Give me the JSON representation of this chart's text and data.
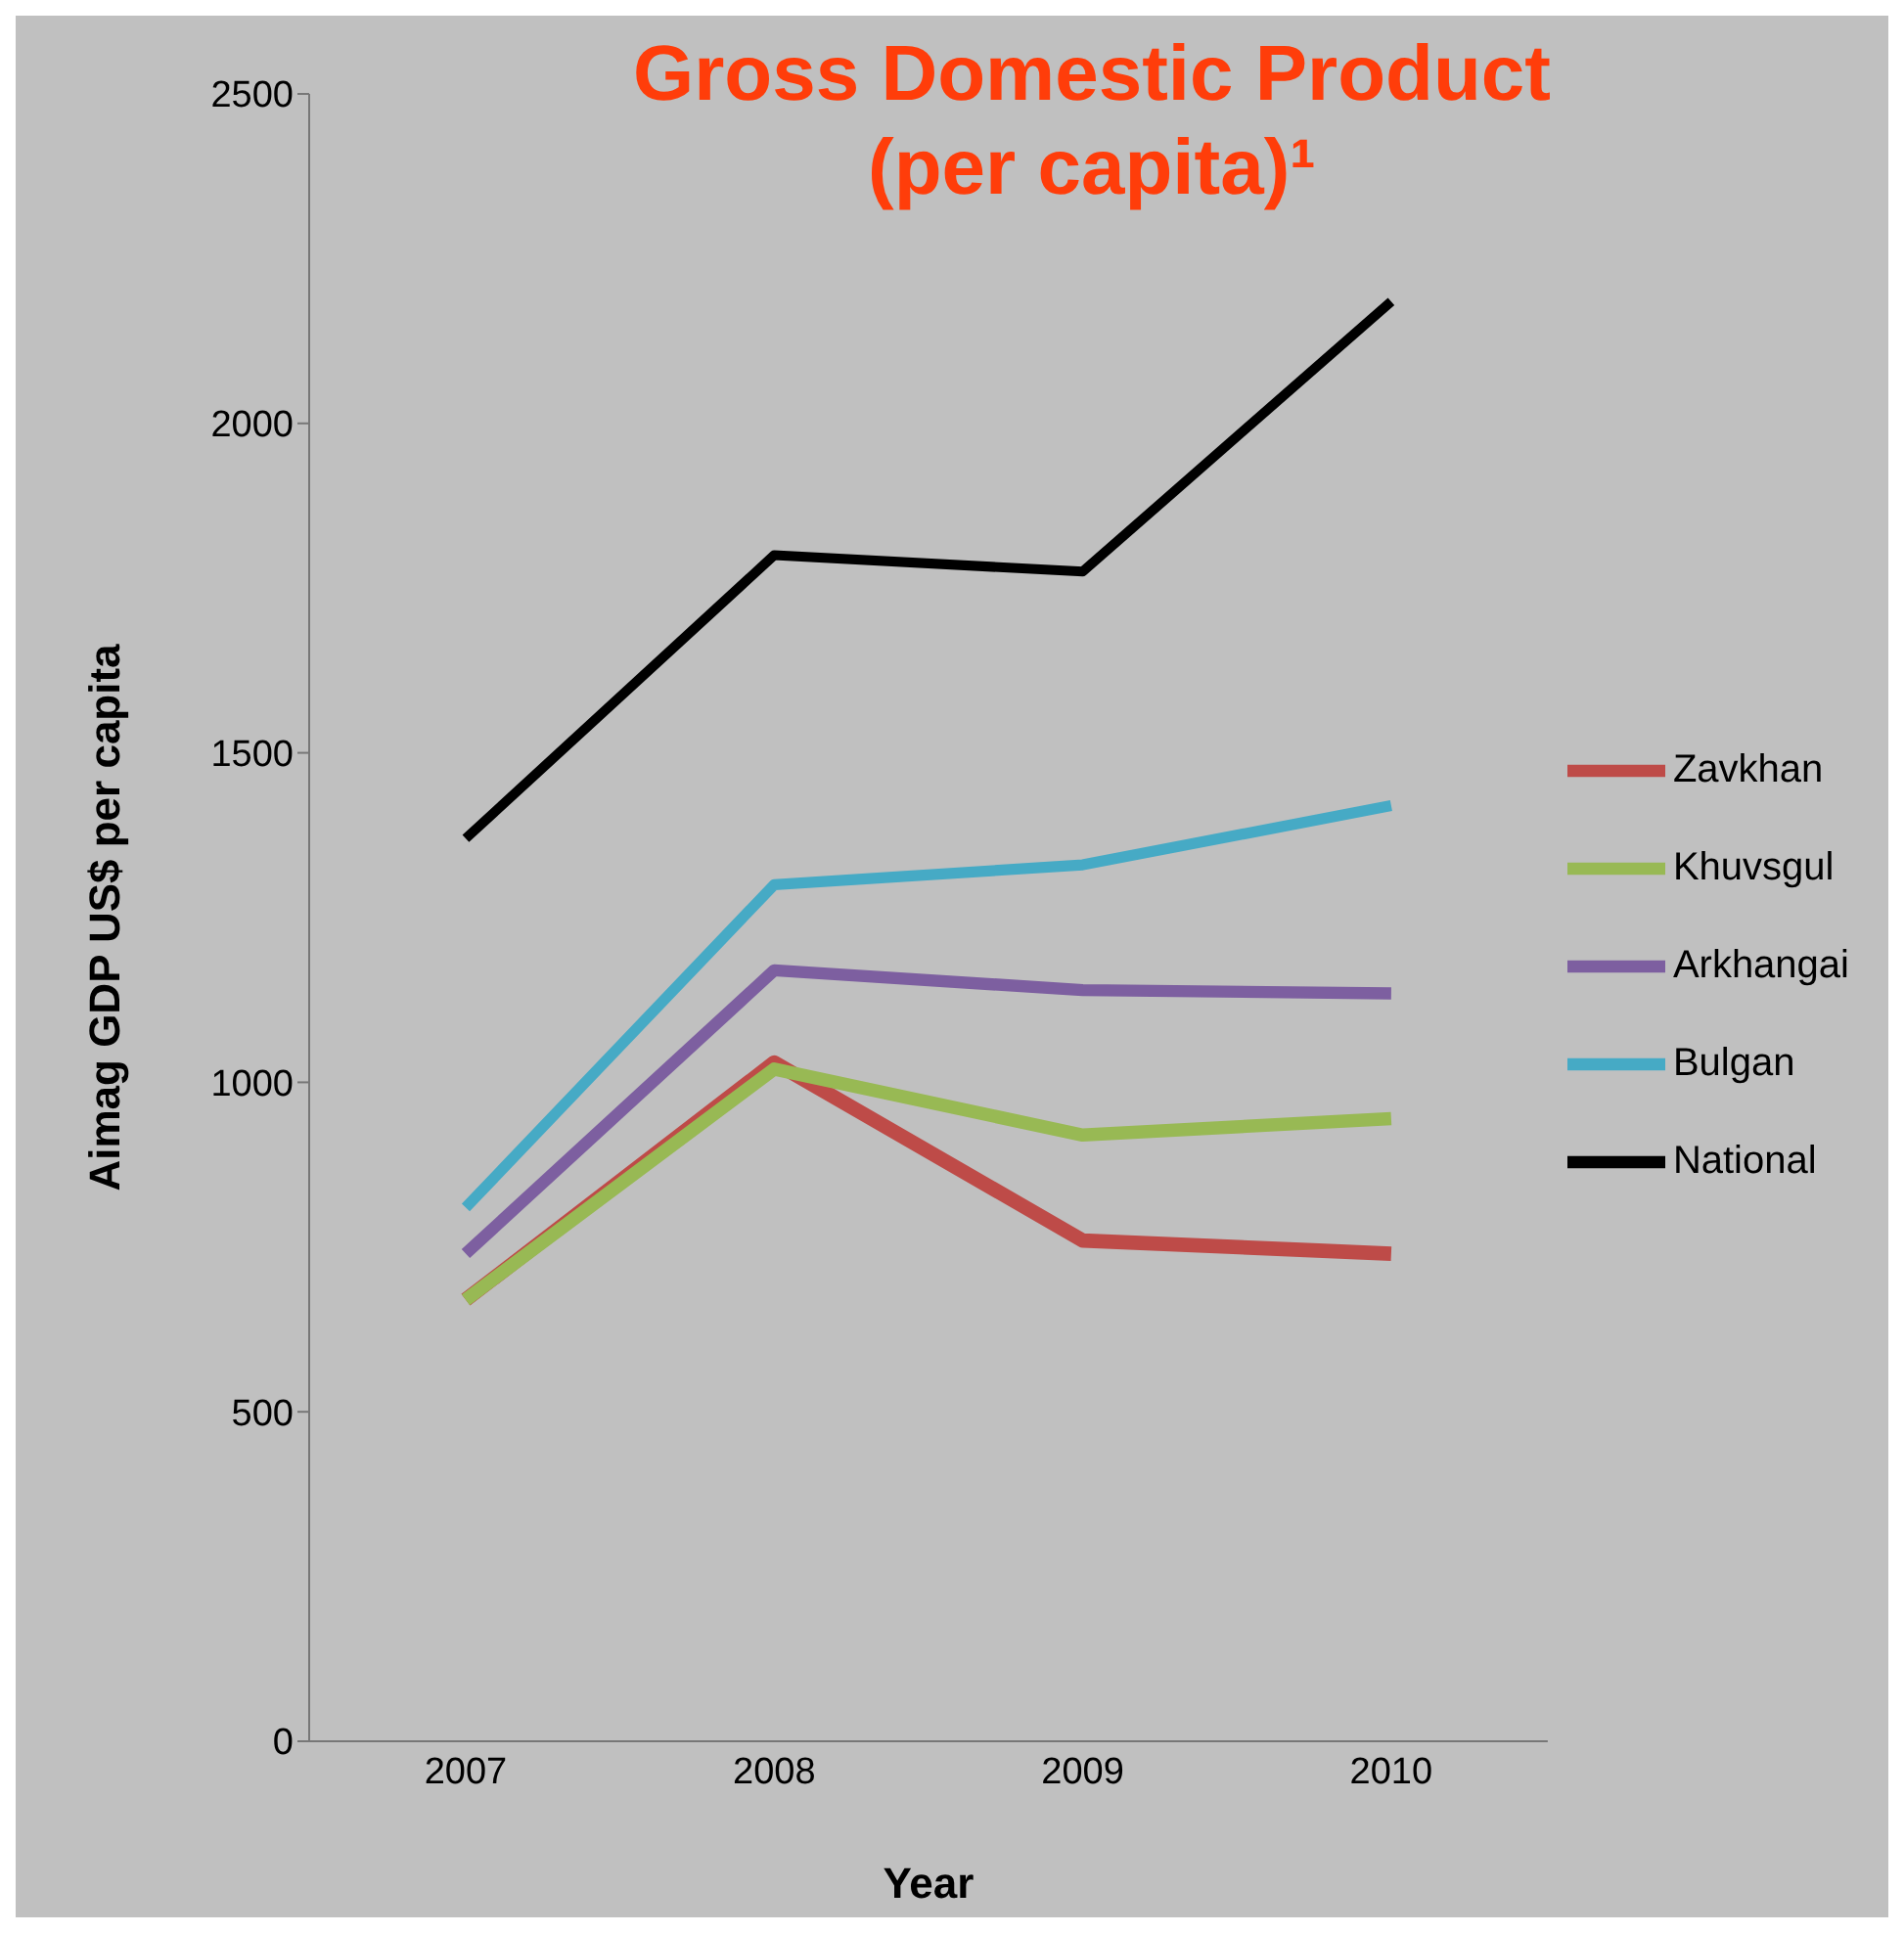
{
  "chart_data": {
    "type": "line",
    "title": "Gross Domestic Product (per capita)¹",
    "xlabel": "Year",
    "ylabel": "Aimag GDP US$ per capita",
    "categories": [
      "2007",
      "2008",
      "2009",
      "2010"
    ],
    "series": [
      {
        "name": "Zavkhan",
        "color": "#be4b48",
        "values": [
          670,
          1030,
          760,
          740
        ]
      },
      {
        "name": "Khuvsgul",
        "color": "#98b954",
        "values": [
          670,
          1020,
          920,
          945
        ]
      },
      {
        "name": "Arkhangai",
        "color": "#7d5fa0",
        "values": [
          740,
          1170,
          1140,
          1135
        ]
      },
      {
        "name": "Bulgan",
        "color": "#46aac5",
        "values": [
          810,
          1300,
          1330,
          1420
        ]
      },
      {
        "name": "National",
        "color": "#000000",
        "values": [
          1370,
          1800,
          1775,
          2185
        ]
      }
    ],
    "ylim": [
      0,
      2500
    ],
    "yticks": [
      0,
      500,
      1000,
      1500,
      2000,
      2500
    ],
    "grid": false,
    "legend": "right",
    "marker": "none",
    "line_style": "solid"
  }
}
